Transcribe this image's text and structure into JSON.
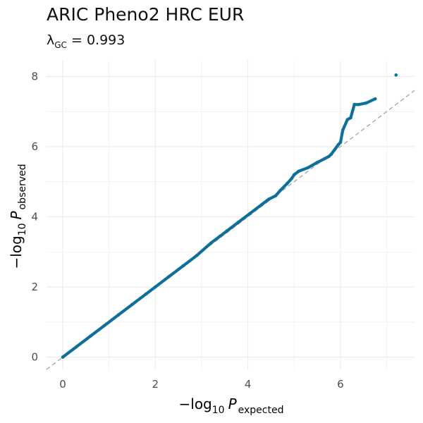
{
  "chart_data": {
    "type": "scatter",
    "title": "ARIC Pheno2 HRC EUR",
    "subtitle": {
      "lambda_symbol": "λ",
      "lambda_subscript": "GC",
      "equals": " = ",
      "value": "0.993"
    },
    "xlabel": {
      "prefix": "−log",
      "base": "10",
      "symbol": "P",
      "subscript": "expected"
    },
    "ylabel": {
      "prefix": "−log",
      "base": "10",
      "symbol": "P",
      "subscript": "observed"
    },
    "xlim": [
      -0.35,
      7.6
    ],
    "ylim": [
      -0.35,
      8.45
    ],
    "x_ticks": [
      0,
      2,
      4,
      6
    ],
    "x_tick_labels": [
      "0",
      "2",
      "4",
      "6"
    ],
    "y_ticks": [
      0,
      2,
      4,
      6,
      8
    ],
    "y_tick_labels": [
      "0",
      "2",
      "4",
      "6",
      "8"
    ],
    "grid": true,
    "reference_line": {
      "slope": 1,
      "intercept": 0,
      "style": "dashed",
      "color": "#aaaaaa"
    },
    "point_color": "#0e6f9b",
    "series": [
      {
        "x": [
          0.0,
          0.3,
          0.6,
          0.9,
          1.2,
          1.5,
          1.8,
          2.0,
          2.3,
          2.6,
          2.9,
          3.2,
          3.4,
          3.55,
          3.8,
          4.05,
          4.3,
          4.45,
          4.6,
          4.7,
          4.85,
          4.95,
          5.0,
          5.1,
          5.3,
          5.5,
          5.65,
          5.75,
          5.8,
          5.95,
          6.0,
          6.05,
          6.15,
          6.22,
          6.3,
          6.4,
          6.55,
          6.75,
          7.2
        ],
        "y": [
          0.0,
          0.3,
          0.6,
          0.9,
          1.2,
          1.5,
          1.8,
          2.0,
          2.3,
          2.6,
          2.9,
          3.25,
          3.45,
          3.6,
          3.85,
          4.1,
          4.35,
          4.5,
          4.6,
          4.75,
          4.95,
          5.1,
          5.2,
          5.3,
          5.4,
          5.55,
          5.65,
          5.72,
          5.78,
          6.05,
          6.12,
          6.47,
          6.77,
          6.82,
          7.2,
          7.2,
          7.24,
          7.36,
          8.04
        ]
      }
    ]
  }
}
